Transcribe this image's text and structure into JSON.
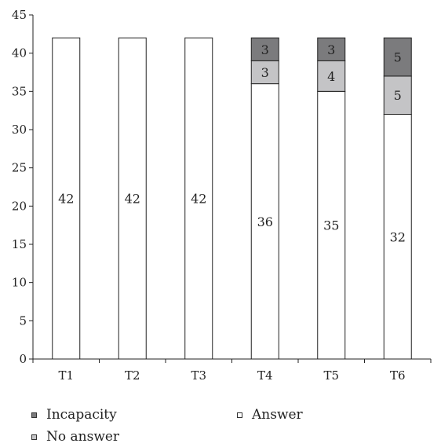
{
  "chart_data": {
    "type": "bar",
    "stacked": true,
    "categories": [
      "T1",
      "T2",
      "T3",
      "T4",
      "T5",
      "T6"
    ],
    "series": [
      {
        "name": "Answer",
        "values": [
          42,
          42,
          42,
          36,
          35,
          32
        ],
        "color": "#ffffff"
      },
      {
        "name": "No answer",
        "values": [
          0,
          0,
          0,
          3,
          4,
          5
        ],
        "color": "#c4c4c6"
      },
      {
        "name": "Incapacity",
        "values": [
          0,
          0,
          0,
          3,
          3,
          5
        ],
        "color": "#7b7b7d"
      }
    ],
    "ylim": [
      0,
      45
    ],
    "yticks": [
      0,
      5,
      10,
      15,
      20,
      25,
      30,
      35,
      40,
      45
    ],
    "title": "",
    "xlabel": "",
    "ylabel": "",
    "grid": false,
    "legend_position": "bottom"
  },
  "legend": [
    {
      "label": "Incapacity",
      "color": "#7b7b7d"
    },
    {
      "label": "Answer",
      "color": "#ffffff"
    },
    {
      "label": "No answer",
      "color": "#c4c4c6"
    }
  ]
}
